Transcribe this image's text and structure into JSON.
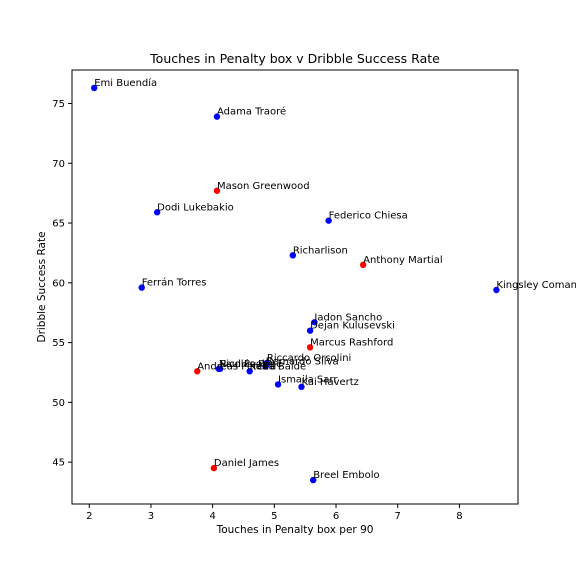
{
  "chart_data": {
    "type": "scatter",
    "title": "Touches in Penalty box v  Dribble Success Rate",
    "xlabel": "Touches in Penalty box per 90",
    "ylabel": "Dribble Success Rate",
    "xlim": [
      1.72,
      8.95
    ],
    "ylim": [
      41.5,
      77.8
    ],
    "xticks": [
      2,
      3,
      4,
      5,
      6,
      7,
      8
    ],
    "yticks": [
      45,
      50,
      55,
      60,
      65,
      70,
      75
    ],
    "grid": false,
    "legend": "none",
    "colors": {
      "blue": "#0000ff",
      "red": "#ff0000"
    },
    "points": [
      {
        "label": "Emi Buendía",
        "x": 2.08,
        "y": 76.3,
        "color": "blue"
      },
      {
        "label": "Adama Traoré",
        "x": 4.07,
        "y": 73.9,
        "color": "blue"
      },
      {
        "label": "Mason Greenwood",
        "x": 4.07,
        "y": 67.7,
        "color": "red"
      },
      {
        "label": "Dodi Lukebakio",
        "x": 3.1,
        "y": 65.9,
        "color": "blue"
      },
      {
        "label": "Federico Chiesa",
        "x": 5.88,
        "y": 65.2,
        "color": "blue"
      },
      {
        "label": "Richarlison",
        "x": 5.3,
        "y": 62.3,
        "color": "blue"
      },
      {
        "label": "Anthony Martial",
        "x": 6.44,
        "y": 61.5,
        "color": "red"
      },
      {
        "label": "Ferrán Torres",
        "x": 2.85,
        "y": 59.6,
        "color": "blue"
      },
      {
        "label": "Kingsley Coman",
        "x": 8.6,
        "y": 59.4,
        "color": "blue"
      },
      {
        "label": "Jadon Sancho",
        "x": 5.65,
        "y": 56.7,
        "color": "blue"
      },
      {
        "label": "Dejan Kulusevski",
        "x": 5.58,
        "y": 56.0,
        "color": "blue"
      },
      {
        "label": "Marcus Rashford",
        "x": 5.58,
        "y": 54.6,
        "color": "red"
      },
      {
        "label": "Riccardo Orsolini",
        "x": 4.88,
        "y": 53.3,
        "color": "blue"
      },
      {
        "label": "Nicolás Pépé",
        "x": 4.1,
        "y": 52.8,
        "color": "blue"
      },
      {
        "label": "Paul Pogba",
        "x": 4.12,
        "y": 52.8,
        "color": "blue"
      },
      {
        "label": "Bernardo Silva",
        "x": 4.86,
        "y": 53.0,
        "color": "blue"
      },
      {
        "label": "Keita Baldé",
        "x": 4.6,
        "y": 52.6,
        "color": "blue"
      },
      {
        "label": "Andreas Pereira",
        "x": 3.75,
        "y": 52.6,
        "color": "red"
      },
      {
        "label": "Ismaila Sarr",
        "x": 5.06,
        "y": 51.5,
        "color": "blue"
      },
      {
        "label": "Kai Havertz",
        "x": 5.44,
        "y": 51.3,
        "color": "blue"
      },
      {
        "label": "Daniel James",
        "x": 4.02,
        "y": 44.5,
        "color": "red"
      },
      {
        "label": "Breel Embolo",
        "x": 5.63,
        "y": 43.5,
        "color": "blue"
      }
    ]
  }
}
